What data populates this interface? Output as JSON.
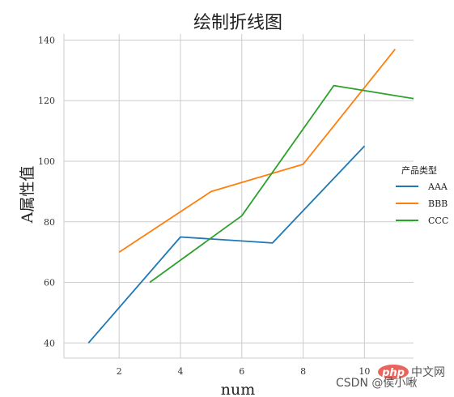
{
  "chart_data": {
    "type": "line",
    "title": "绘制折线图",
    "xlabel": "num",
    "ylabel": "A属性值",
    "xlim": [
      0.2,
      11.6
    ],
    "ylim": [
      35,
      142
    ],
    "xticks": [
      2,
      4,
      6,
      8,
      10
    ],
    "yticks": [
      40,
      60,
      80,
      100,
      120,
      140
    ],
    "grid": true,
    "legend_title": "产品类型",
    "legend_position": "right",
    "series": [
      {
        "name": "AAA",
        "color": "#1f77b4",
        "x": [
          1,
          4,
          7,
          10
        ],
        "y": [
          40,
          75,
          73,
          105
        ]
      },
      {
        "name": "BBB",
        "color": "#ff7f0e",
        "x": [
          2,
          5,
          8,
          11
        ],
        "y": [
          70,
          90,
          99,
          137
        ]
      },
      {
        "name": "CCC",
        "color": "#2ca02c",
        "x": [
          3,
          6,
          9,
          12
        ],
        "y": [
          60,
          82,
          125,
          120
        ]
      }
    ]
  },
  "watermark": {
    "logo_text": "php",
    "site_text": "中文网",
    "author_text": "CSDN @侯小啾"
  }
}
